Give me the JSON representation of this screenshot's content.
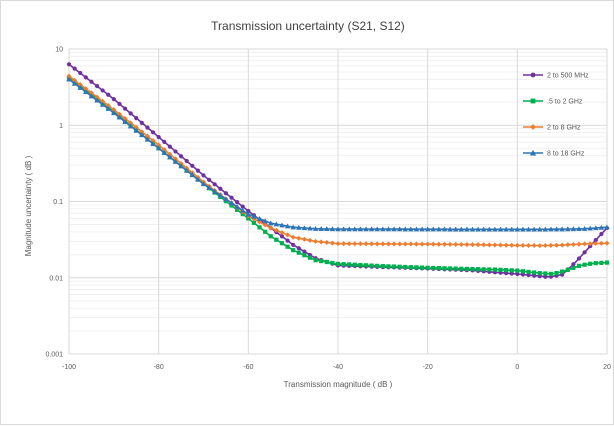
{
  "chart_data": {
    "type": "line",
    "title": "Transmission uncertainty (S21, S12)",
    "xlabel": "Transmission magnitude ( dB )",
    "ylabel": "Magnitude uncertainty ( dB )",
    "x_axis": {
      "min": -100,
      "max": 20,
      "ticks": [
        -100,
        -80,
        -60,
        -40,
        -20,
        0,
        20
      ],
      "tick_labels": [
        "-100",
        "-80",
        "-60",
        "-40",
        "-20",
        "0",
        "20"
      ]
    },
    "y_axis": {
      "scale": "log",
      "min": 0.001,
      "max": 10,
      "ticks": [
        0.001,
        0.01,
        0.1,
        1,
        10
      ],
      "tick_labels": [
        "0.001",
        "0.01",
        "0.1",
        "1",
        "10"
      ]
    },
    "grid": true,
    "legend": "right",
    "series": [
      {
        "name": "2 to 500 MHz",
        "color": "#7030a0",
        "marker": "circle",
        "points": [
          [
            -100,
            6.3
          ],
          [
            -90,
            2.2
          ],
          [
            -80,
            0.7
          ],
          [
            -70,
            0.22
          ],
          [
            -60,
            0.075
          ],
          [
            -55,
            0.045
          ],
          [
            -50,
            0.027
          ],
          [
            -45,
            0.018
          ],
          [
            -40,
            0.0145
          ],
          [
            -30,
            0.0138
          ],
          [
            -20,
            0.0132
          ],
          [
            -10,
            0.0125
          ],
          [
            -5,
            0.0118
          ],
          [
            0,
            0.0112
          ],
          [
            5,
            0.0105
          ],
          [
            7,
            0.0102
          ],
          [
            10,
            0.011
          ],
          [
            13,
            0.016
          ],
          [
            16,
            0.025
          ],
          [
            20,
            0.045
          ]
        ]
      },
      {
        "name": ".5 to 2 GHz",
        "color": "#00b050",
        "marker": "square",
        "points": [
          [
            -100,
            4.2
          ],
          [
            -90,
            1.5
          ],
          [
            -80,
            0.5
          ],
          [
            -70,
            0.17
          ],
          [
            -60,
            0.06
          ],
          [
            -55,
            0.035
          ],
          [
            -50,
            0.023
          ],
          [
            -45,
            0.017
          ],
          [
            -40,
            0.0152
          ],
          [
            -30,
            0.0142
          ],
          [
            -20,
            0.0135
          ],
          [
            -10,
            0.013
          ],
          [
            -5,
            0.0128
          ],
          [
            0,
            0.0124
          ],
          [
            5,
            0.0115
          ],
          [
            8,
            0.0112
          ],
          [
            11,
            0.0125
          ],
          [
            14,
            0.0145
          ],
          [
            17,
            0.0155
          ],
          [
            20,
            0.0158
          ]
        ]
      },
      {
        "name": "2 to 8 GHz",
        "color": "#ed7d31",
        "marker": "diamond",
        "points": [
          [
            -100,
            4.4
          ],
          [
            -90,
            1.6
          ],
          [
            -80,
            0.55
          ],
          [
            -70,
            0.18
          ],
          [
            -60,
            0.065
          ],
          [
            -55,
            0.045
          ],
          [
            -50,
            0.034
          ],
          [
            -45,
            0.03
          ],
          [
            -40,
            0.028
          ],
          [
            -30,
            0.0278
          ],
          [
            -20,
            0.0276
          ],
          [
            -10,
            0.0272
          ],
          [
            0,
            0.0266
          ],
          [
            5,
            0.0264
          ],
          [
            10,
            0.0268
          ],
          [
            15,
            0.0278
          ],
          [
            20,
            0.0284
          ]
        ]
      },
      {
        "name": "8 to 18 GHz",
        "color": "#2e75b6",
        "marker": "triangle",
        "points": [
          [
            -100,
            4.0
          ],
          [
            -90,
            1.45
          ],
          [
            -80,
            0.5
          ],
          [
            -70,
            0.17
          ],
          [
            -60,
            0.068
          ],
          [
            -55,
            0.052
          ],
          [
            -50,
            0.046
          ],
          [
            -45,
            0.044
          ],
          [
            -40,
            0.0435
          ],
          [
            -30,
            0.0435
          ],
          [
            -20,
            0.0433
          ],
          [
            -10,
            0.0432
          ],
          [
            0,
            0.0432
          ],
          [
            5,
            0.0432
          ],
          [
            10,
            0.0434
          ],
          [
            15,
            0.044
          ],
          [
            20,
            0.046
          ]
        ]
      }
    ]
  }
}
